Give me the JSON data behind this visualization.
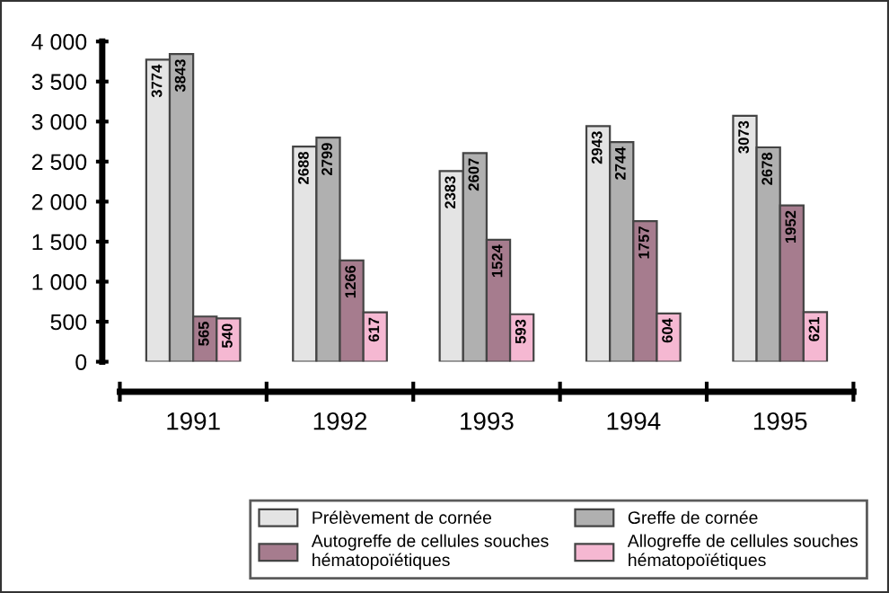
{
  "chart_data": {
    "type": "bar",
    "categories": [
      "1991",
      "1992",
      "1993",
      "1994",
      "1995"
    ],
    "series": [
      {
        "name": "Prélèvement de cornée",
        "color": "#e4e4e4",
        "values": [
          3774,
          2688,
          2383,
          2943,
          3073
        ]
      },
      {
        "name": "Greffe de cornée",
        "color": "#b0b0b0",
        "values": [
          3843,
          2799,
          2607,
          2744,
          2678
        ]
      },
      {
        "name": "Autogreffe de cellules souches hématopoïétiques",
        "color": "#a67c8e",
        "values": [
          565,
          1266,
          1524,
          1757,
          1952
        ]
      },
      {
        "name": "Allogreffe de cellules souches hématopoïétiques",
        "color": "#f5b8d2",
        "values": [
          540,
          617,
          593,
          604,
          621
        ]
      }
    ],
    "ylim": [
      0,
      4000
    ],
    "yticks": [
      0,
      {
        "value": 500,
        "label": "500"
      },
      {
        "value": 1000,
        "label": "1 000"
      },
      {
        "value": 1500,
        "label": "1 500"
      },
      {
        "value": 2000,
        "label": "2 000"
      },
      {
        "value": 2500,
        "label": "2 500"
      },
      {
        "value": 3000,
        "label": "3 000"
      },
      {
        "value": 3500,
        "label": "3 500"
      },
      {
        "value": 4000,
        "label": "4 000"
      }
    ],
    "data_labels": true,
    "grid": false,
    "legend": "bottom right"
  }
}
